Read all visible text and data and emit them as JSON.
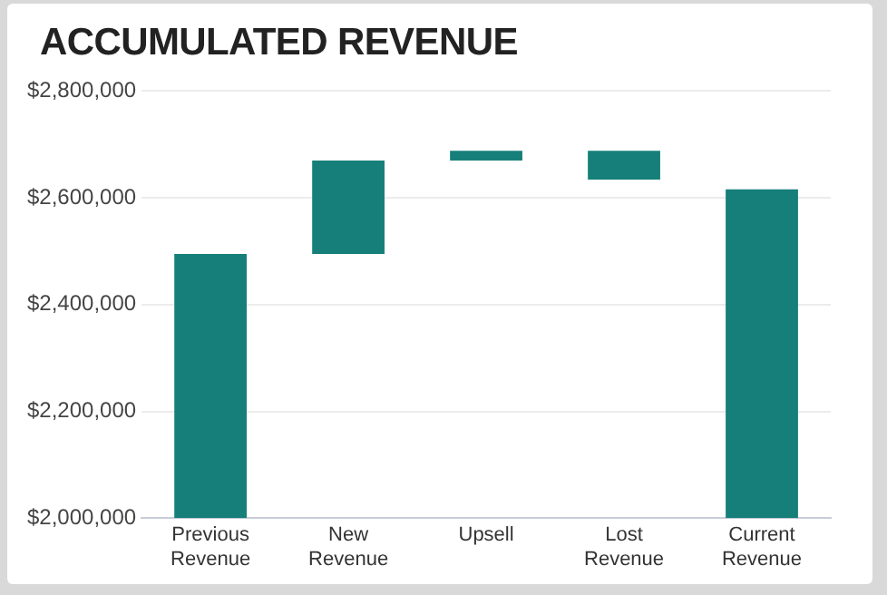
{
  "chart_data": {
    "type": "bar",
    "title": "ACCUMULATED REVENUE",
    "categories": [
      "Previous\nRevenue",
      "New\nRevenue",
      "Upsell",
      "Lost\nRevenue",
      "Current\nRevenue"
    ],
    "values": [
      495000,
      175000,
      18000,
      -54000,
      616000
    ],
    "base": [
      2000000,
      2495000,
      2670000,
      2688000,
      2000000
    ],
    "color": "#167f7a",
    "ylim": [
      2000000,
      2800000
    ],
    "yticks": [
      {
        "value": 2000000,
        "label": "$2,000,000"
      },
      {
        "value": 2200000,
        "label": "$2,200,000"
      },
      {
        "value": 2400000,
        "label": "$2,400,000"
      },
      {
        "value": 2600000,
        "label": "$2,600,000"
      },
      {
        "value": 2800000,
        "label": "$2,800,000"
      }
    ],
    "grid": "y",
    "legend": false
  }
}
